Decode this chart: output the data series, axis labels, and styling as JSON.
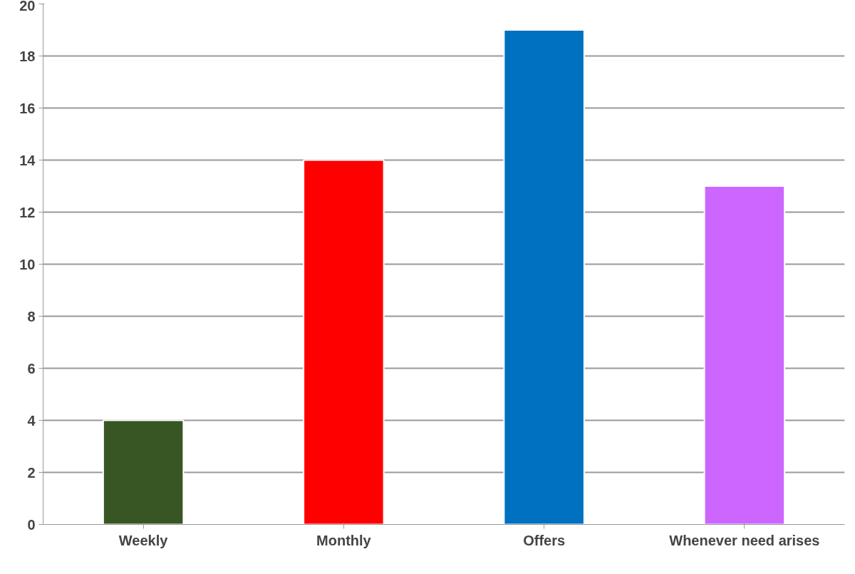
{
  "chart_data": {
    "type": "bar",
    "categories": [
      "Weekly",
      "Monthly",
      "Offers",
      "Whenever need arises"
    ],
    "values": [
      4,
      14,
      19,
      13
    ],
    "colors": [
      "#375623",
      "#ff0000",
      "#0070c0",
      "#cc66ff"
    ],
    "ylim": [
      0,
      20
    ],
    "yticks": [
      0,
      2,
      4,
      6,
      8,
      10,
      12,
      14,
      16,
      18,
      20
    ],
    "grid": "y"
  }
}
